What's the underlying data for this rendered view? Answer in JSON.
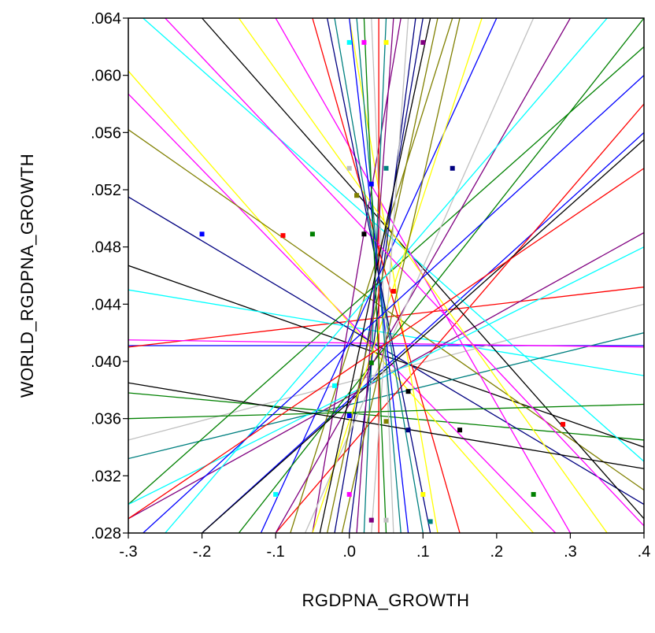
{
  "chart_data": {
    "type": "scatter",
    "title": "",
    "xlabel": "RGDPNA_GROWTH",
    "ylabel": "WORLD_RGDPNA_GROWTH",
    "xlim": [
      -0.3,
      0.4
    ],
    "ylim": [
      0.028,
      0.064
    ],
    "x_ticks": [
      -0.3,
      -0.2,
      -0.1,
      0.0,
      0.1,
      0.2,
      0.3,
      0.4
    ],
    "x_tick_labels": [
      "-.3",
      "-.2",
      "-.1",
      ".0",
      ".1",
      ".2",
      ".3",
      ".4"
    ],
    "y_ticks": [
      0.028,
      0.032,
      0.036,
      0.04,
      0.044,
      0.048,
      0.052,
      0.056,
      0.06,
      0.064
    ],
    "y_tick_labels": [
      ".028",
      ".032",
      ".036",
      ".040",
      ".044",
      ".048",
      ".052",
      ".056",
      ".060",
      ".064"
    ],
    "grid": false,
    "legend": "none",
    "colors": [
      "#0000ff",
      "#ff0000",
      "#008000",
      "#000000",
      "#00ffff",
      "#ff00ff",
      "#ffff00",
      "#800080",
      "#c0c0c0",
      "#008080",
      "#000080",
      "#808000"
    ],
    "points": [
      [
        -0.2,
        0.0489
      ],
      [
        -0.09,
        0.0488
      ],
      [
        -0.05,
        0.0489
      ],
      [
        0.02,
        0.0489
      ],
      [
        0.0,
        0.0623
      ],
      [
        0.02,
        0.0623
      ],
      [
        0.05,
        0.0623
      ],
      [
        0.1,
        0.0623
      ],
      [
        0.0,
        0.0535
      ],
      [
        0.05,
        0.0535
      ],
      [
        0.14,
        0.0535
      ],
      [
        0.01,
        0.0516
      ],
      [
        0.03,
        0.0524
      ],
      [
        0.29,
        0.0356
      ],
      [
        0.25,
        0.0307
      ],
      [
        0.15,
        0.0352
      ],
      [
        -0.1,
        0.0307
      ],
      [
        0.0,
        0.0307
      ],
      [
        0.1,
        0.0307
      ],
      [
        0.03,
        0.0289
      ],
      [
        0.05,
        0.0289
      ],
      [
        0.11,
        0.0288
      ],
      [
        0.08,
        0.0352
      ],
      [
        0.05,
        0.0358
      ],
      [
        0.0,
        0.0362
      ],
      [
        0.06,
        0.0449
      ],
      [
        0.03,
        0.0399
      ],
      [
        0.08,
        0.0379
      ],
      [
        -0.02,
        0.0383
      ]
    ],
    "lines": [
      [
        [
          -0.3,
          0.0411
        ],
        [
          0.4,
          0.0411
        ]
      ],
      [
        [
          -0.3,
          0.041
        ],
        [
          0.4,
          0.0452
        ]
      ],
      [
        [
          -0.3,
          0.0378
        ],
        [
          0.4,
          0.0345
        ]
      ],
      [
        [
          -0.3,
          0.0467
        ],
        [
          0.4,
          0.034
        ]
      ],
      [
        [
          -0.3,
          0.045
        ],
        [
          0.4,
          0.039
        ]
      ],
      [
        [
          -0.3,
          0.0587
        ],
        [
          0.28,
          0.028
        ]
      ],
      [
        [
          -0.3,
          0.0603
        ],
        [
          0.25,
          0.028
        ]
      ],
      [
        [
          -0.3,
          0.029
        ],
        [
          0.4,
          0.049
        ]
      ],
      [
        [
          -0.3,
          0.0345
        ],
        [
          0.4,
          0.044
        ]
      ],
      [
        [
          -0.3,
          0.0332
        ],
        [
          0.4,
          0.042
        ]
      ],
      [
        [
          -0.3,
          0.0515
        ],
        [
          0.4,
          0.03
        ]
      ],
      [
        [
          -0.3,
          0.0562
        ],
        [
          0.4,
          0.031
        ]
      ],
      [
        [
          -0.2,
          0.028
        ],
        [
          0.4,
          0.056
        ]
      ],
      [
        [
          -0.1,
          0.028
        ],
        [
          0.4,
          0.058
        ]
      ],
      [
        [
          -0.3,
          0.03
        ],
        [
          0.4,
          0.062
        ]
      ],
      [
        [
          -0.2,
          0.064
        ],
        [
          0.4,
          0.029
        ]
      ],
      [
        [
          -0.28,
          0.064
        ],
        [
          0.4,
          0.033
        ]
      ],
      [
        [
          -0.1,
          0.064
        ],
        [
          0.3,
          0.028
        ]
      ],
      [
        [
          0.0,
          0.064
        ],
        [
          0.12,
          0.028
        ]
      ],
      [
        [
          0.07,
          0.064
        ],
        [
          -0.05,
          0.028
        ]
      ],
      [
        [
          0.03,
          0.064
        ],
        [
          0.06,
          0.028
        ]
      ],
      [
        [
          0.05,
          0.064
        ],
        [
          0.02,
          0.028
        ]
      ],
      [
        [
          0.1,
          0.064
        ],
        [
          -0.02,
          0.028
        ]
      ],
      [
        [
          0.14,
          0.064
        ],
        [
          -0.08,
          0.028
        ]
      ],
      [
        [
          0.2,
          0.064
        ],
        [
          -0.12,
          0.028
        ]
      ],
      [
        [
          -0.05,
          0.064
        ],
        [
          0.15,
          0.028
        ]
      ],
      [
        [
          0.4,
          0.064
        ],
        [
          -0.15,
          0.028
        ]
      ],
      [
        [
          0.4,
          0.0555
        ],
        [
          -0.2,
          0.028
        ]
      ],
      [
        [
          0.4,
          0.048
        ],
        [
          -0.3,
          0.03
        ]
      ],
      [
        [
          -0.3,
          0.0415
        ],
        [
          0.4,
          0.041
        ]
      ],
      [
        [
          -0.15,
          0.064
        ],
        [
          0.35,
          0.028
        ]
      ],
      [
        [
          0.3,
          0.064
        ],
        [
          -0.1,
          0.028
        ]
      ],
      [
        [
          0.25,
          0.064
        ],
        [
          -0.06,
          0.028
        ]
      ],
      [
        [
          -0.02,
          0.064
        ],
        [
          0.1,
          0.028
        ]
      ],
      [
        [
          0.09,
          0.064
        ],
        [
          0.0,
          0.028
        ]
      ],
      [
        [
          0.12,
          0.064
        ],
        [
          -0.03,
          0.028
        ]
      ],
      [
        [
          0.0,
          0.064
        ],
        [
          0.08,
          0.028
        ]
      ],
      [
        [
          0.04,
          0.064
        ],
        [
          0.04,
          0.028
        ]
      ],
      [
        [
          -0.3,
          0.036
        ],
        [
          0.4,
          0.037
        ]
      ],
      [
        [
          -0.3,
          0.0385
        ],
        [
          0.4,
          0.0325
        ]
      ],
      [
        [
          0.35,
          0.064
        ],
        [
          -0.25,
          0.028
        ]
      ],
      [
        [
          -0.25,
          0.064
        ],
        [
          0.4,
          0.0285
        ]
      ],
      [
        [
          0.18,
          0.064
        ],
        [
          -0.05,
          0.028
        ]
      ],
      [
        [
          0.06,
          0.064
        ],
        [
          0.01,
          0.028
        ]
      ],
      [
        [
          0.08,
          0.064
        ],
        [
          0.03,
          0.028
        ]
      ],
      [
        [
          0.01,
          0.064
        ],
        [
          0.07,
          0.028
        ]
      ],
      [
        [
          -0.03,
          0.064
        ],
        [
          0.11,
          0.028
        ]
      ],
      [
        [
          0.15,
          0.064
        ],
        [
          -0.01,
          0.028
        ]
      ],
      [
        [
          0.4,
          0.06
        ],
        [
          -0.28,
          0.028
        ]
      ],
      [
        [
          -0.3,
          0.029
        ],
        [
          0.4,
          0.0535
        ]
      ],
      [
        [
          0.02,
          0.064
        ],
        [
          0.05,
          0.028
        ]
      ],
      [
        [
          0.11,
          0.064
        ],
        [
          -0.04,
          0.028
        ]
      ]
    ]
  }
}
